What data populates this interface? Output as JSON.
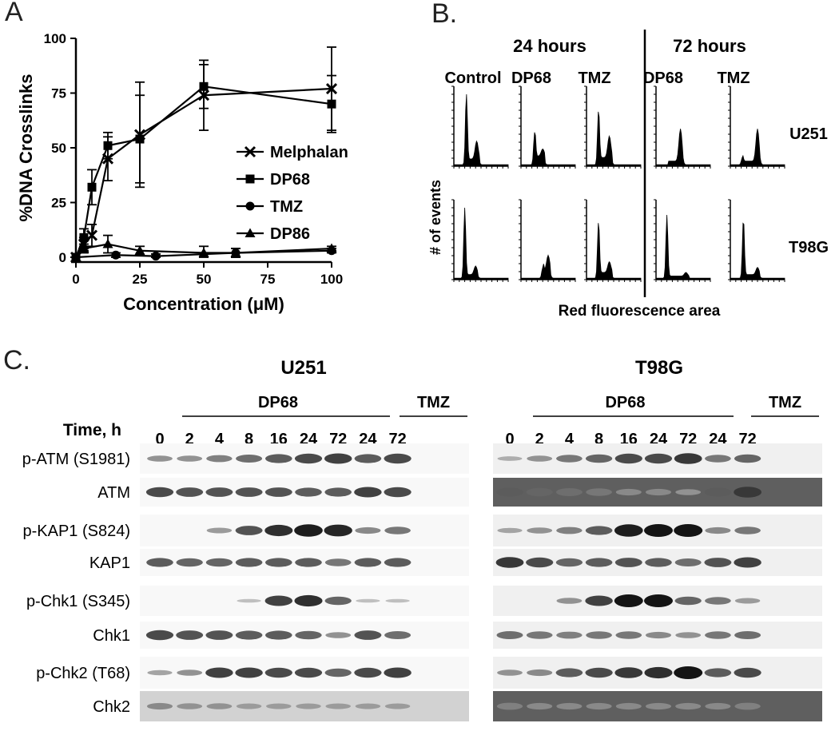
{
  "panels": {
    "a": {
      "label": "A"
    },
    "b": {
      "label": "B."
    },
    "c": {
      "label": "C."
    }
  },
  "chart_data": {
    "type": "line",
    "xlabel": "Concentration (μM)",
    "ylabel": "%DNA Crosslinks",
    "xlim": [
      0,
      100
    ],
    "ylim": [
      0,
      100
    ],
    "xticks": [
      "0",
      "25",
      "50",
      "75",
      "100"
    ],
    "yticks": [
      "0",
      "25",
      "50",
      "75",
      "100"
    ],
    "legend_position": "right",
    "grid": false,
    "series": [
      {
        "name": "Melphalan",
        "marker": "x",
        "x": [
          0,
          3.1,
          6.25,
          12.5,
          25,
          50,
          100
        ],
        "y": [
          0,
          6,
          10,
          45,
          56,
          74,
          77
        ],
        "err": [
          0,
          3,
          5,
          10,
          24,
          16,
          19
        ]
      },
      {
        "name": "DP68",
        "marker": "square",
        "x": [
          0,
          3.1,
          6.25,
          12.5,
          25,
          50,
          100
        ],
        "y": [
          0,
          9,
          32,
          51,
          54,
          78,
          70
        ],
        "err": [
          0,
          4,
          8,
          6,
          20,
          10,
          13
        ]
      },
      {
        "name": "TMZ",
        "marker": "circle",
        "x": [
          0,
          15.6,
          31.25,
          62.5,
          100
        ],
        "y": [
          0,
          1,
          0.5,
          2,
          3
        ],
        "err": [
          0,
          1,
          1,
          2,
          1
        ]
      },
      {
        "name": "DP86",
        "marker": "triangle",
        "x": [
          0,
          3.1,
          12.5,
          25,
          50,
          62.5,
          100
        ],
        "y": [
          0,
          4,
          6,
          3,
          2,
          2,
          4
        ],
        "err": [
          0,
          2,
          4,
          2,
          3,
          2,
          1
        ]
      }
    ]
  },
  "flow": {
    "time_24": "24 hours",
    "time_72": "72 hours",
    "columns": [
      "Control",
      "DP68",
      "TMZ",
      "DP68",
      "TMZ"
    ],
    "rows": [
      "U251",
      "T98G"
    ],
    "ylabel": "# of events",
    "xlabel": "Red fluorescence area"
  },
  "blot": {
    "time_label": "Time, h",
    "u251": {
      "title": "U251",
      "group1": "DP68",
      "group2": "TMZ"
    },
    "t98g": {
      "title": "T98G",
      "group1": "DP68",
      "group2": "TMZ"
    },
    "lanes": [
      "0",
      "2",
      "4",
      "8",
      "16",
      "24",
      "72",
      "24",
      "72"
    ],
    "rows": [
      {
        "label": "p-ATM (S1981)",
        "u251": [
          0.3,
          0.3,
          0.4,
          0.5,
          0.6,
          0.7,
          0.75,
          0.6,
          0.7
        ],
        "t98g": [
          0.15,
          0.3,
          0.45,
          0.55,
          0.7,
          0.7,
          0.8,
          0.45,
          0.55
        ]
      },
      {
        "label": "ATM",
        "u251": [
          0.7,
          0.65,
          0.65,
          0.65,
          0.65,
          0.6,
          0.6,
          0.75,
          0.7
        ],
        "t98g": [
          0.6,
          0.55,
          0.5,
          0.45,
          0.35,
          0.35,
          0.3,
          0.6,
          0.8
        ]
      },
      {
        "label": "p-KAP1 (S824)",
        "u251": [
          0,
          0,
          0.25,
          0.65,
          0.85,
          0.95,
          0.9,
          0.35,
          0.45
        ],
        "t98g": [
          0.2,
          0.3,
          0.4,
          0.6,
          0.95,
          1,
          1,
          0.35,
          0.45
        ]
      },
      {
        "label": "KAP1",
        "u251": [
          0.6,
          0.55,
          0.55,
          0.6,
          0.6,
          0.6,
          0.45,
          0.6,
          0.6
        ],
        "t98g": [
          0.8,
          0.7,
          0.55,
          0.6,
          0.65,
          0.6,
          0.5,
          0.65,
          0.75
        ]
      },
      {
        "label": "p-Chk1 (S345)",
        "u251": [
          0,
          0,
          0,
          0.05,
          0.75,
          0.85,
          0.55,
          0.05,
          0.05
        ],
        "t98g": [
          0,
          0,
          0.3,
          0.75,
          1,
          1,
          0.55,
          0.45,
          0.25
        ]
      },
      {
        "label": "Chk1",
        "u251": [
          0.7,
          0.65,
          0.65,
          0.6,
          0.6,
          0.55,
          0.3,
          0.65,
          0.5
        ],
        "t98g": [
          0.5,
          0.45,
          0.4,
          0.45,
          0.45,
          0.35,
          0.3,
          0.45,
          0.5
        ]
      },
      {
        "label": "p-Chk2 (T68)",
        "u251": [
          0.2,
          0.3,
          0.75,
          0.75,
          0.7,
          0.7,
          0.55,
          0.7,
          0.75
        ],
        "t98g": [
          0.3,
          0.35,
          0.6,
          0.7,
          0.8,
          0.85,
          1,
          0.6,
          0.7
        ]
      },
      {
        "label": "Chk2",
        "u251": [
          0.35,
          0.3,
          0.3,
          0.25,
          0.25,
          0.25,
          0.25,
          0.25,
          0.25
        ],
        "t98g": [
          0.4,
          0.35,
          0.35,
          0.35,
          0.35,
          0.35,
          0.35,
          0.35,
          0.4
        ]
      }
    ]
  }
}
